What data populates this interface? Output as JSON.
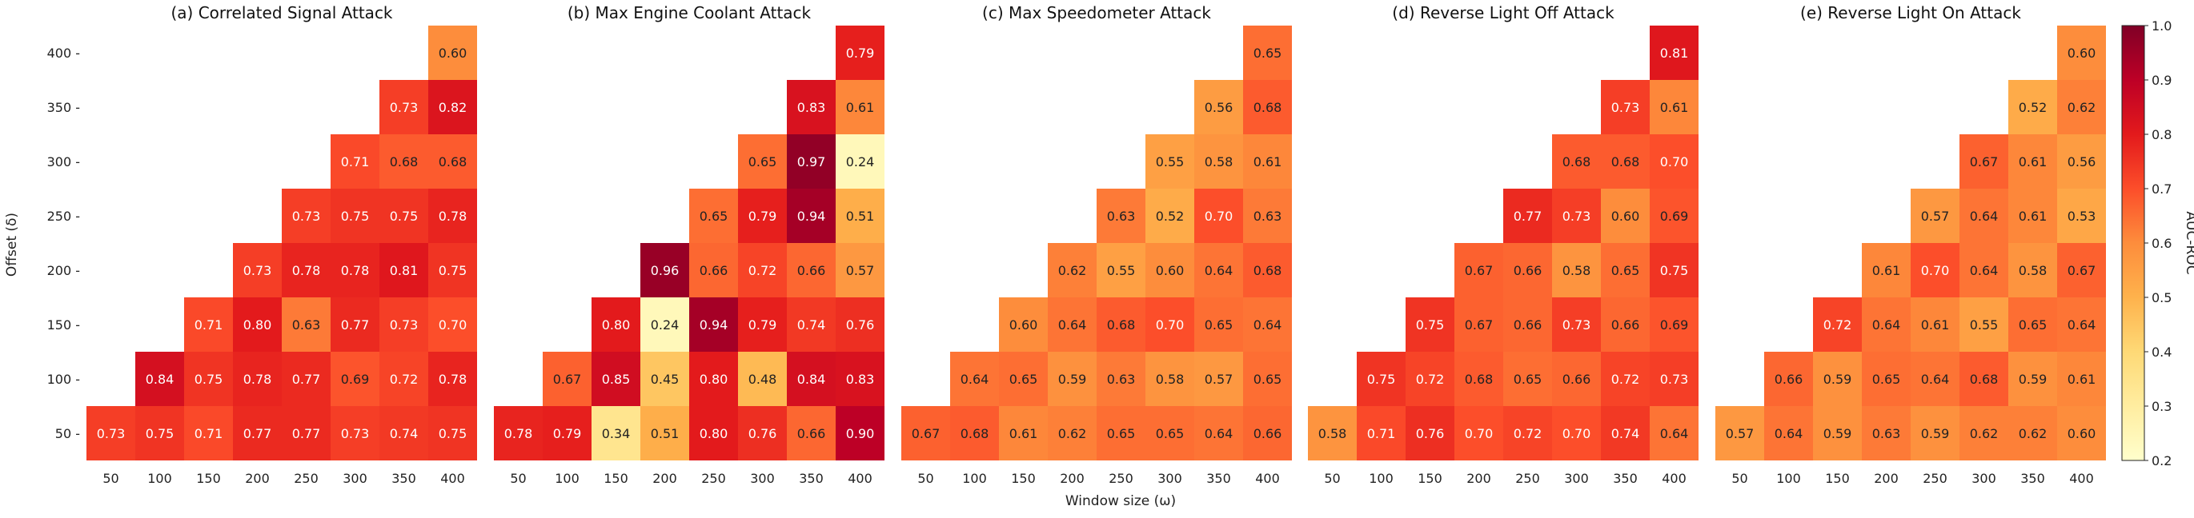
{
  "figure": {
    "xlabel": "Window size (ω)",
    "ylabel": "Offset (δ)"
  },
  "colorbar": {
    "label": "AUC-ROC",
    "ticks": [
      "0.2",
      "0.3",
      "0.4",
      "0.5",
      "0.6",
      "0.7",
      "0.8",
      "0.9",
      "1.0"
    ],
    "range": [
      0.2,
      1.0
    ],
    "colormap": "YlOrRd",
    "colors": [
      "#ffffcc",
      "#ffeda0",
      "#fed976",
      "#feb24c",
      "#fd8d3c",
      "#fc4e2a",
      "#e31a1c",
      "#bd0026",
      "#800026"
    ]
  },
  "chart_data": [
    {
      "type": "heatmap",
      "title": "(a) Correlated Signal Attack",
      "x": [
        "50",
        "100",
        "150",
        "200",
        "250",
        "300",
        "350",
        "400"
      ],
      "y": [
        "400",
        "350",
        "300",
        "250",
        "200",
        "150",
        "100",
        "50"
      ],
      "values": [
        [
          null,
          null,
          null,
          null,
          null,
          null,
          null,
          0.6
        ],
        [
          null,
          null,
          null,
          null,
          null,
          null,
          0.73,
          0.82
        ],
        [
          null,
          null,
          null,
          null,
          null,
          0.71,
          0.68,
          0.68
        ],
        [
          null,
          null,
          null,
          null,
          0.73,
          0.75,
          0.75,
          0.78
        ],
        [
          null,
          null,
          null,
          0.73,
          0.78,
          0.78,
          0.81,
          0.75
        ],
        [
          null,
          null,
          0.71,
          0.8,
          0.63,
          0.77,
          0.73,
          0.7
        ],
        [
          null,
          0.84,
          0.75,
          0.78,
          0.77,
          0.69,
          0.72,
          0.78
        ],
        [
          0.73,
          0.75,
          0.71,
          0.77,
          0.77,
          0.73,
          0.74,
          0.75
        ]
      ]
    },
    {
      "type": "heatmap",
      "title": "(b) Max Engine Coolant Attack",
      "x": [
        "50",
        "100",
        "150",
        "200",
        "250",
        "300",
        "350",
        "400"
      ],
      "y": [
        "400",
        "350",
        "300",
        "250",
        "200",
        "150",
        "100",
        "50"
      ],
      "values": [
        [
          null,
          null,
          null,
          null,
          null,
          null,
          null,
          0.79
        ],
        [
          null,
          null,
          null,
          null,
          null,
          null,
          0.83,
          0.61
        ],
        [
          null,
          null,
          null,
          null,
          null,
          0.65,
          0.97,
          0.24
        ],
        [
          null,
          null,
          null,
          null,
          0.65,
          0.79,
          0.94,
          0.51
        ],
        [
          null,
          null,
          null,
          0.96,
          0.66,
          0.72,
          0.66,
          0.57
        ],
        [
          null,
          null,
          0.8,
          0.24,
          0.94,
          0.79,
          0.74,
          0.76
        ],
        [
          null,
          0.67,
          0.85,
          0.45,
          0.8,
          0.48,
          0.84,
          0.83
        ],
        [
          0.78,
          0.79,
          0.34,
          0.51,
          0.8,
          0.76,
          0.66,
          0.9
        ]
      ]
    },
    {
      "type": "heatmap",
      "title": "(c) Max Speedometer Attack",
      "x": [
        "50",
        "100",
        "150",
        "200",
        "250",
        "300",
        "350",
        "400"
      ],
      "y": [
        "400",
        "350",
        "300",
        "250",
        "200",
        "150",
        "100",
        "50"
      ],
      "values": [
        [
          null,
          null,
          null,
          null,
          null,
          null,
          null,
          0.65
        ],
        [
          null,
          null,
          null,
          null,
          null,
          null,
          0.56,
          0.68
        ],
        [
          null,
          null,
          null,
          null,
          null,
          0.55,
          0.58,
          0.61
        ],
        [
          null,
          null,
          null,
          null,
          0.63,
          0.52,
          0.7,
          0.63
        ],
        [
          null,
          null,
          null,
          0.62,
          0.55,
          0.6,
          0.64,
          0.68
        ],
        [
          null,
          null,
          0.6,
          0.64,
          0.68,
          0.7,
          0.65,
          0.64
        ],
        [
          null,
          0.64,
          0.65,
          0.59,
          0.63,
          0.58,
          0.57,
          0.65
        ],
        [
          0.67,
          0.68,
          0.61,
          0.62,
          0.65,
          0.65,
          0.64,
          0.66
        ]
      ]
    },
    {
      "type": "heatmap",
      "title": "(d) Reverse Light Off Attack",
      "x": [
        "50",
        "100",
        "150",
        "200",
        "250",
        "300",
        "350",
        "400"
      ],
      "y": [
        "400",
        "350",
        "300",
        "250",
        "200",
        "150",
        "100",
        "50"
      ],
      "values": [
        [
          null,
          null,
          null,
          null,
          null,
          null,
          null,
          0.81
        ],
        [
          null,
          null,
          null,
          null,
          null,
          null,
          0.73,
          0.61
        ],
        [
          null,
          null,
          null,
          null,
          null,
          0.68,
          0.68,
          0.7
        ],
        [
          null,
          null,
          null,
          null,
          0.77,
          0.73,
          0.6,
          0.69
        ],
        [
          null,
          null,
          null,
          0.67,
          0.66,
          0.58,
          0.65,
          0.75
        ],
        [
          null,
          null,
          0.75,
          0.67,
          0.66,
          0.73,
          0.66,
          0.69
        ],
        [
          null,
          0.75,
          0.72,
          0.68,
          0.65,
          0.66,
          0.72,
          0.73
        ],
        [
          0.58,
          0.71,
          0.76,
          0.7,
          0.72,
          0.7,
          0.74,
          0.64
        ]
      ]
    },
    {
      "type": "heatmap",
      "title": "(e) Reverse Light On Attack",
      "x": [
        "50",
        "100",
        "150",
        "200",
        "250",
        "300",
        "350",
        "400"
      ],
      "y": [
        "400",
        "350",
        "300",
        "250",
        "200",
        "150",
        "100",
        "50"
      ],
      "values": [
        [
          null,
          null,
          null,
          null,
          null,
          null,
          null,
          0.6
        ],
        [
          null,
          null,
          null,
          null,
          null,
          null,
          0.52,
          0.62
        ],
        [
          null,
          null,
          null,
          null,
          null,
          0.67,
          0.61,
          0.56
        ],
        [
          null,
          null,
          null,
          null,
          0.57,
          0.64,
          0.61,
          0.53
        ],
        [
          null,
          null,
          null,
          0.61,
          0.7,
          0.64,
          0.58,
          0.67
        ],
        [
          null,
          null,
          0.72,
          0.64,
          0.61,
          0.55,
          0.65,
          0.64
        ],
        [
          null,
          0.66,
          0.59,
          0.65,
          0.64,
          0.68,
          0.59,
          0.61
        ],
        [
          0.57,
          0.64,
          0.59,
          0.63,
          0.59,
          0.62,
          0.62,
          0.6
        ]
      ]
    }
  ]
}
